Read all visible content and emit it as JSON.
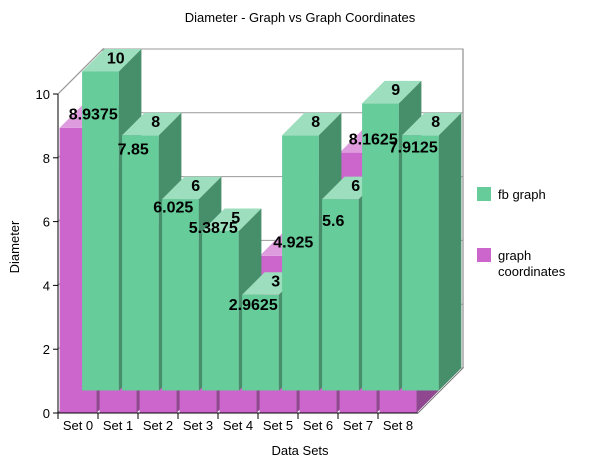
{
  "chart_data": {
    "type": "bar",
    "title": "Diameter - Graph vs Graph Coordinates",
    "xlabel": "Data Sets",
    "ylabel": "Diameter",
    "categories": [
      "Set 0",
      "Set 1",
      "Set 2",
      "Set 3",
      "Set 4",
      "Set 5",
      "Set 6",
      "Set 7",
      "Set 8"
    ],
    "ylim": [
      0,
      10
    ],
    "yticks": [
      0,
      2,
      4,
      6,
      8,
      10
    ],
    "grid": true,
    "three_d": true,
    "legend_position": "right",
    "series": [
      {
        "name": "fb graph",
        "color": "#66cc99",
        "values": [
          10,
          8,
          6,
          5,
          3,
          8,
          6,
          9,
          8
        ],
        "labels": [
          "10",
          "8",
          "6",
          "5",
          "3",
          "8",
          "6",
          "9",
          "8"
        ]
      },
      {
        "name": "graph coordinates",
        "color": "#cc66cc",
        "values": [
          8.9375,
          7.85,
          6.025,
          5.3875,
          2.9625,
          4.925,
          5.6,
          8.1625,
          7.9125
        ],
        "labels": [
          "8.9375",
          "7.85",
          "6.025",
          "5.3875",
          "2.9625",
          "4.925",
          "5.6",
          "8.1625",
          "7.9125"
        ]
      }
    ]
  }
}
